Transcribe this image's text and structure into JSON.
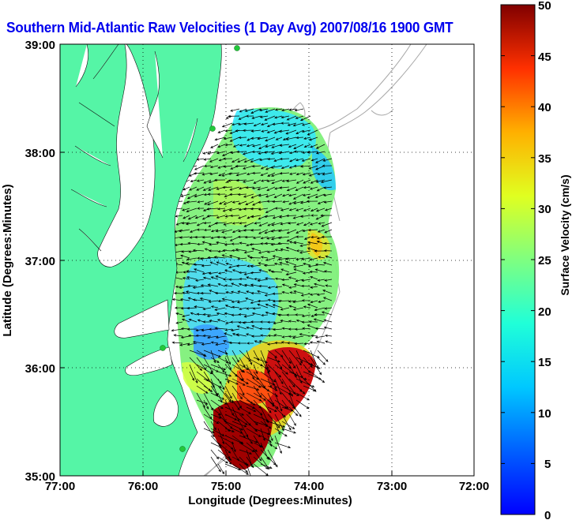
{
  "title": "Southern Mid-Atlantic Raw Velocities (1 Day Avg) 2007/08/16 1900 GMT",
  "axes": {
    "xlabel": "Longitude (Degrees:Minutes)",
    "ylabel": "Latitude (Degrees:Minutes)",
    "x_ticks": [
      "77:00",
      "76:00",
      "75:00",
      "74:00",
      "73:00",
      "72:00"
    ],
    "y_ticks": [
      "39:00",
      "38:00",
      "37:00",
      "36:00",
      "35:00"
    ],
    "xlim": [
      -77,
      -72
    ],
    "ylim": [
      35,
      39
    ],
    "grid": "dotted"
  },
  "colorbar": {
    "label": "Surface Velocity (cm/s)",
    "ticks": [
      "50",
      "45",
      "40",
      "35",
      "30",
      "25",
      "20",
      "15",
      "10",
      "5",
      "0"
    ],
    "range": [
      0,
      50
    ],
    "colormap": "jet"
  },
  "colors": {
    "land": "#55f5a6",
    "water": "#ffffff",
    "bathymetry": "#a8a8a8",
    "station": "#22c83a",
    "title": "#0000ee"
  }
}
